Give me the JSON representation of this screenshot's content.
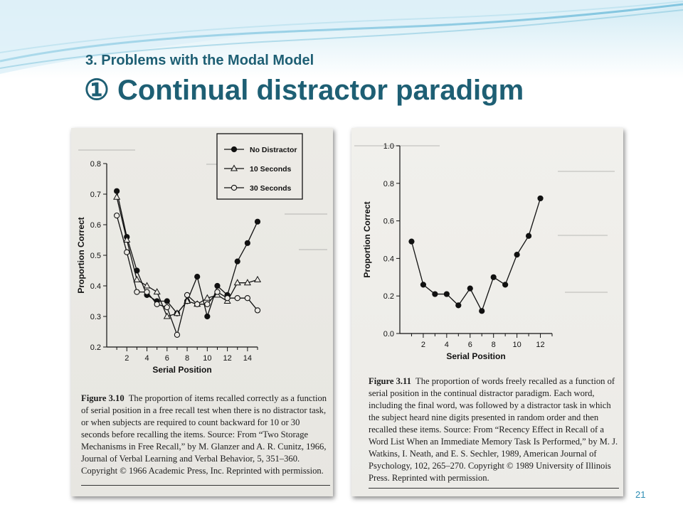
{
  "slide": {
    "subtitle": "3. Problems with the Modal Model",
    "title": "① Continual distractor paradigm",
    "page_number": "21",
    "colors": {
      "title": "#1e5f74",
      "page_number": "#2d8db3",
      "banner": "#7fc6e0"
    }
  },
  "captions": {
    "left": {
      "label": "Figure 3.10",
      "text": "The proportion of items recalled correctly as a function of serial position in a free recall test when there is no distractor task, or when subjects are required to count backward for 10 or 30 seconds before recalling the items. Source: From “Two Storage Mechanisms in Free Recall,” by M. Glanzer and A. R. Cunitz, 1966, Journal of Verbal Learning and Verbal Behavior, 5, 351–360. Copyright © 1966 Academic Press, Inc. Reprinted with permission."
    },
    "right": {
      "label": "Figure 3.11",
      "text": "The proportion of words freely recalled as a function of serial position in the continual distractor paradigm. Each word, including the final word, was followed by a distractor task in which the subject heard nine digits presented in random order and then recalled these items. Source: From “Recency Effect in Recall of a Word List When an Immediate Memory Task Is Performed,” by M. J. Watkins, I. Neath, and E. S. Sechler, 1989, American Journal of Psychology, 102, 265–270. Copyright © 1989 University of Illinois Press. Reprinted with permission."
    }
  },
  "chart_data": [
    {
      "type": "line",
      "xlabel": "Serial Position",
      "ylabel": "Proportion Correct",
      "xlim": [
        0,
        15
      ],
      "ylim": [
        0.2,
        0.8
      ],
      "xticks": [
        2,
        4,
        6,
        8,
        10,
        12,
        14
      ],
      "yticks": [
        0.2,
        0.3,
        0.4,
        0.5,
        0.6,
        0.7,
        0.8
      ],
      "legend_position": "top-right",
      "x": [
        1,
        2,
        3,
        4,
        5,
        6,
        7,
        8,
        9,
        10,
        11,
        12,
        13,
        14,
        15
      ],
      "series": [
        {
          "name": "No Distractor",
          "marker": "filled-circle",
          "values": [
            0.71,
            0.56,
            0.45,
            0.37,
            0.35,
            0.35,
            0.31,
            0.35,
            0.43,
            0.3,
            0.4,
            0.37,
            0.48,
            0.54,
            0.61
          ]
        },
        {
          "name": "10 Seconds",
          "marker": "triangle",
          "values": [
            0.69,
            0.55,
            0.42,
            0.4,
            0.38,
            0.3,
            0.31,
            0.35,
            0.34,
            0.36,
            0.37,
            0.35,
            0.41,
            0.41,
            0.42
          ]
        },
        {
          "name": "30 Seconds",
          "marker": "open-circle",
          "values": [
            0.63,
            0.51,
            0.38,
            0.38,
            0.34,
            0.33,
            0.24,
            0.37,
            0.34,
            0.34,
            0.38,
            0.36,
            0.36,
            0.36,
            0.32
          ]
        }
      ]
    },
    {
      "type": "line",
      "xlabel": "Serial Position",
      "ylabel": "Proportion Correct",
      "xlim": [
        0,
        13
      ],
      "ylim": [
        0.0,
        1.0
      ],
      "xticks": [
        2,
        4,
        6,
        8,
        10,
        12
      ],
      "yticks": [
        0.0,
        0.2,
        0.4,
        0.6,
        0.8,
        1.0
      ],
      "x": [
        1,
        2,
        3,
        4,
        5,
        6,
        7,
        8,
        9,
        10,
        11,
        12
      ],
      "series": [
        {
          "marker": "filled-circle",
          "values": [
            0.49,
            0.26,
            0.21,
            0.21,
            0.15,
            0.24,
            0.12,
            0.3,
            0.26,
            0.42,
            0.52,
            0.72
          ]
        }
      ]
    }
  ]
}
